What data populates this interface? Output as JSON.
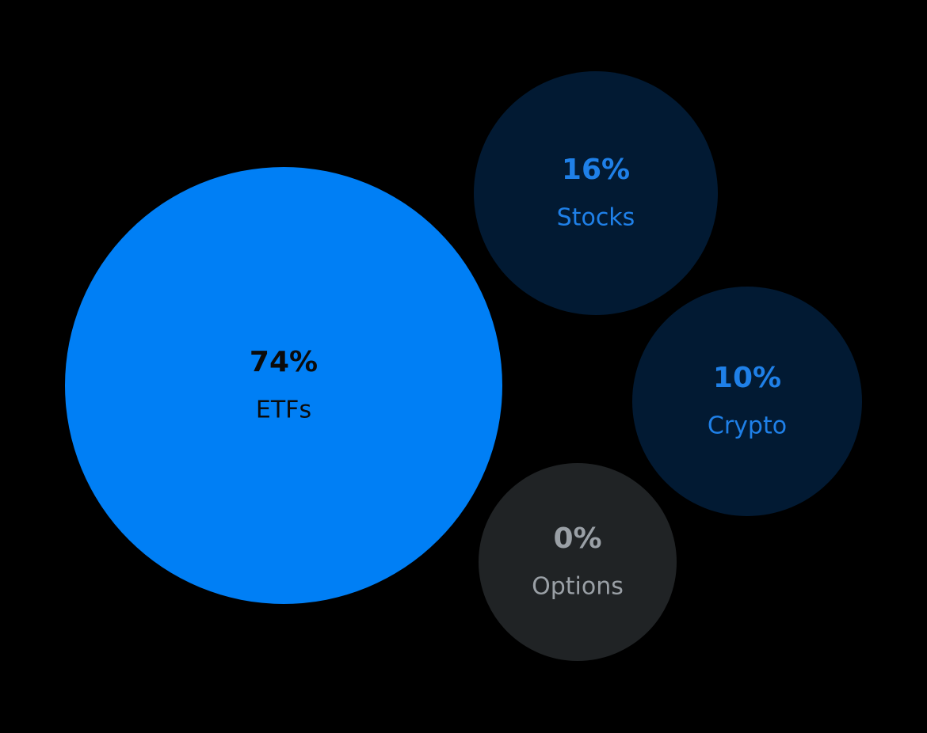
{
  "chart_data": {
    "type": "bubble",
    "categories": [
      "ETFs",
      "Stocks",
      "Crypto",
      "Options"
    ],
    "values": [
      74,
      16,
      10,
      0
    ],
    "value_labels": [
      "74%",
      "16%",
      "10%",
      "0%"
    ],
    "colors": [
      "#007ff5",
      "#021a33",
      "#021a33",
      "#202325"
    ]
  }
}
